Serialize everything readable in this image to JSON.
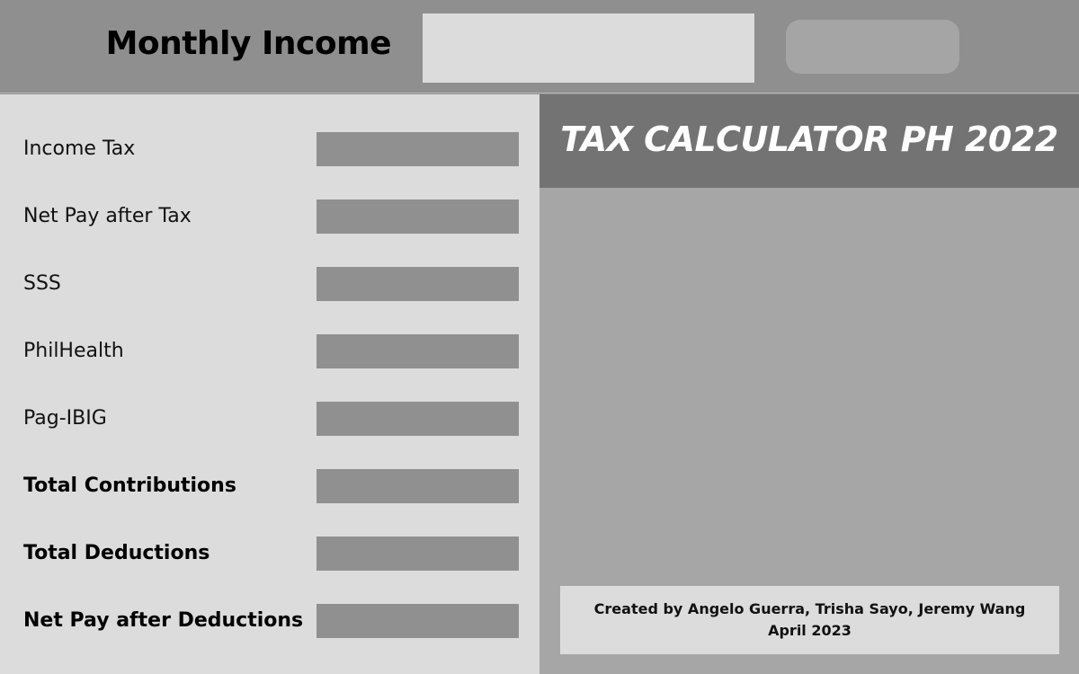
{
  "header": {
    "title": "Monthly Income",
    "income_input": {
      "value": "",
      "placeholder": ""
    },
    "calculate_button": {
      "label": ""
    }
  },
  "results": [
    {
      "label": "Income Tax",
      "value": "",
      "bold": false
    },
    {
      "label": "Net Pay after Tax",
      "value": "",
      "bold": false
    },
    {
      "label": "SSS",
      "value": "",
      "bold": false
    },
    {
      "label": "PhilHealth",
      "value": "",
      "bold": false
    },
    {
      "label": "Pag-IBIG",
      "value": "",
      "bold": false
    },
    {
      "label": "Total Contributions",
      "value": "",
      "bold": true
    },
    {
      "label": "Total Deductions",
      "value": "",
      "bold": true
    },
    {
      "label": "Net Pay after Deductions",
      "value": "",
      "bold": true
    }
  ],
  "banner": {
    "title": "TAX CALCULATOR PH 2022"
  },
  "credits": {
    "authors": "Created by Angelo Guerra, Trisha Sayo, Jeremy Wang",
    "date": "April 2023"
  },
  "colors": {
    "header_bg": "#8f8f8f",
    "input_bg": "#dcdcdc",
    "button_bg": "#a5a5a5",
    "left_panel_bg": "#dcdcdc",
    "value_field_bg": "#909090",
    "right_panel_bg": "#a6a6a6",
    "banner_bg": "#737373",
    "banner_text": "#ffffff"
  }
}
